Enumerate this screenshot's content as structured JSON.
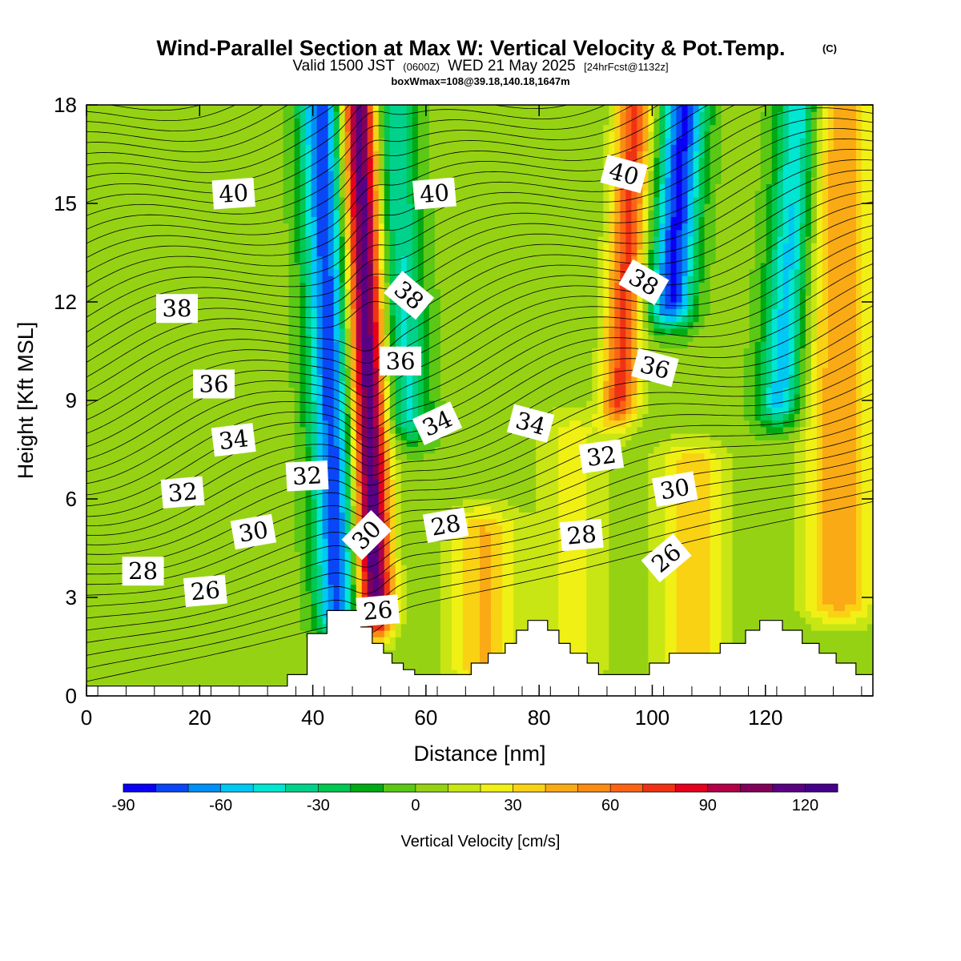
{
  "title": {
    "main": "Wind-Parallel Section at Max W: Vertical Velocity & Pot.Temp.",
    "copyright": "(C)",
    "valid_prefix": "Valid 1500 JST",
    "utc": "(0600Z)",
    "valid_date": "WED 21 May 2025",
    "forecast": "[24hrFcst@1132z]",
    "box_info": "boxWmax=108@39.18,140.18,1647m"
  },
  "chart_data": {
    "type": "heatmap",
    "xlabel": "Distance [nm]",
    "ylabel": "Height [Kft MSL]",
    "xlim": [
      0,
      139
    ],
    "ylim": [
      0,
      18
    ],
    "x_ticks": [
      "0",
      "20",
      "40",
      "60",
      "80",
      "100",
      "120"
    ],
    "y_ticks": [
      "0",
      "3",
      "6",
      "9",
      "12",
      "15",
      "18"
    ],
    "colorbar": {
      "title": "Vertical Velocity [cm/s]",
      "min": -90,
      "max": 130,
      "step": 10,
      "tick_labels": [
        "-90",
        "-60",
        "-30",
        "0",
        "30",
        "60",
        "90",
        "120"
      ],
      "tick_values": [
        -90,
        -60,
        -30,
        0,
        30,
        60,
        90,
        120
      ],
      "colors": [
        "#0a00f5",
        "#0a46f5",
        "#0090f5",
        "#00c8f5",
        "#00e6d2",
        "#00d28c",
        "#00c850",
        "#00aa14",
        "#5ac814",
        "#96d214",
        "#c8e614",
        "#f0f014",
        "#fad214",
        "#faaa14",
        "#fa8c14",
        "#fa6414",
        "#f03214",
        "#e6001e",
        "#b40046",
        "#82005a",
        "#5a0082",
        "#46008c"
      ]
    },
    "vertical_velocity_features": [
      {
        "type": "downdraft",
        "x": 44,
        "z_bottom": 2.6,
        "z_top": 18,
        "peak": -80,
        "slope": -0.2
      },
      {
        "type": "updraft",
        "x": 50.5,
        "z_bottom": 2.6,
        "z_top": 18,
        "peak": 118,
        "slope": -0.18
      },
      {
        "type": "downdraft",
        "x": 58,
        "z_bottom": 8.5,
        "z_top": 18,
        "peak": -45,
        "slope": -0.3
      },
      {
        "type": "updraft",
        "x": 70,
        "z_bottom": 1,
        "z_top": 5,
        "peak": 38
      },
      {
        "type": "updraft",
        "x": 86,
        "z_bottom": 1,
        "z_top": 8,
        "peak": 20
      },
      {
        "type": "updraft",
        "x": 93,
        "z_bottom": 9,
        "z_top": 18,
        "peak": 70,
        "slope": 0.3
      },
      {
        "type": "downdraft",
        "x": 100.5,
        "z_bottom": 12,
        "z_top": 18,
        "peak": -85,
        "slope": 0.4
      },
      {
        "type": "updraft",
        "x": 107,
        "z_bottom": 1,
        "z_top": 7,
        "peak": 35
      },
      {
        "type": "downdraft",
        "x": 121,
        "z_bottom": 9,
        "z_top": 18,
        "peak": -60,
        "slope": 0.4
      },
      {
        "type": "updraft",
        "x": 133,
        "z_bottom": 3,
        "z_top": 18,
        "peak": 45
      }
    ],
    "potential_temperature": {
      "units": "contour labels",
      "labels": [
        {
          "text": "40",
          "x": 26,
          "z": 15.3,
          "angle": -4
        },
        {
          "text": "40",
          "x": 61.5,
          "z": 15.3,
          "angle": -5
        },
        {
          "text": "40",
          "x": 95,
          "z": 15.9,
          "angle": 15
        },
        {
          "text": "38",
          "x": 16,
          "z": 11.8,
          "angle": 0
        },
        {
          "text": "38",
          "x": 57,
          "z": 12.2,
          "angle": 40
        },
        {
          "text": "38",
          "x": 98.5,
          "z": 12.6,
          "angle": 30
        },
        {
          "text": "36",
          "x": 22.5,
          "z": 9.5,
          "angle": 0
        },
        {
          "text": "36",
          "x": 55.5,
          "z": 10.2,
          "angle": 0
        },
        {
          "text": "36",
          "x": 100.5,
          "z": 10.0,
          "angle": 15
        },
        {
          "text": "34",
          "x": 26,
          "z": 7.8,
          "angle": -7
        },
        {
          "text": "34",
          "x": 62,
          "z": 8.3,
          "angle": -25
        },
        {
          "text": "34",
          "x": 78.5,
          "z": 8.3,
          "angle": 15
        },
        {
          "text": "32",
          "x": 17,
          "z": 6.2,
          "angle": -5
        },
        {
          "text": "32",
          "x": 39,
          "z": 6.7,
          "angle": -3
        },
        {
          "text": "32",
          "x": 91,
          "z": 7.3,
          "angle": -8
        },
        {
          "text": "30",
          "x": 29.5,
          "z": 5.0,
          "angle": -10
        },
        {
          "text": "30",
          "x": 49.5,
          "z": 4.9,
          "angle": -45
        },
        {
          "text": "30",
          "x": 104,
          "z": 6.3,
          "angle": -10
        },
        {
          "text": "28",
          "x": 10,
          "z": 3.8,
          "angle": 0
        },
        {
          "text": "28",
          "x": 63.5,
          "z": 5.2,
          "angle": -10
        },
        {
          "text": "28",
          "x": 87.5,
          "z": 4.9,
          "angle": -5
        },
        {
          "text": "26",
          "x": 21,
          "z": 3.2,
          "angle": -5
        },
        {
          "text": "26",
          "x": 51.5,
          "z": 2.6,
          "angle": -5
        },
        {
          "text": "26",
          "x": 102.5,
          "z": 4.2,
          "angle": -40
        }
      ]
    },
    "terrain_top_kft": [
      [
        0,
        0.3
      ],
      [
        35.5,
        0.3
      ],
      [
        35.5,
        0.65
      ],
      [
        39,
        0.65
      ],
      [
        39,
        1.9
      ],
      [
        42.5,
        1.9
      ],
      [
        42.5,
        2.6
      ],
      [
        48.5,
        2.6
      ],
      [
        48.5,
        2.1
      ],
      [
        50.5,
        2.1
      ],
      [
        50.5,
        1.6
      ],
      [
        52.5,
        1.6
      ],
      [
        52.5,
        1.3
      ],
      [
        54,
        1.3
      ],
      [
        54,
        1.0
      ],
      [
        56,
        1.0
      ],
      [
        56,
        0.8
      ],
      [
        58,
        0.8
      ],
      [
        58,
        0.65
      ],
      [
        68,
        0.65
      ],
      [
        68,
        1.0
      ],
      [
        71,
        1.0
      ],
      [
        71,
        1.3
      ],
      [
        74,
        1.3
      ],
      [
        74,
        1.6
      ],
      [
        76,
        1.6
      ],
      [
        76,
        2.0
      ],
      [
        78,
        2.0
      ],
      [
        78,
        2.3
      ],
      [
        81.5,
        2.3
      ],
      [
        81.5,
        2.0
      ],
      [
        83.5,
        2.0
      ],
      [
        83.5,
        1.6
      ],
      [
        85.5,
        1.6
      ],
      [
        85.5,
        1.3
      ],
      [
        88.5,
        1.3
      ],
      [
        88.5,
        1.0
      ],
      [
        90.5,
        1.0
      ],
      [
        90.5,
        0.65
      ],
      [
        99.5,
        0.65
      ],
      [
        99.5,
        1.0
      ],
      [
        103,
        1.0
      ],
      [
        103,
        1.3
      ],
      [
        112,
        1.3
      ],
      [
        112,
        1.6
      ],
      [
        116.5,
        1.6
      ],
      [
        116.5,
        2.0
      ],
      [
        119,
        2.0
      ],
      [
        119,
        2.3
      ],
      [
        123,
        2.3
      ],
      [
        123,
        2.0
      ],
      [
        126.5,
        2.0
      ],
      [
        126.5,
        1.6
      ],
      [
        129.5,
        1.6
      ],
      [
        129.5,
        1.3
      ],
      [
        132.5,
        1.3
      ],
      [
        132.5,
        1.0
      ],
      [
        136,
        1.0
      ],
      [
        136,
        0.65
      ],
      [
        139,
        0.65
      ]
    ]
  }
}
